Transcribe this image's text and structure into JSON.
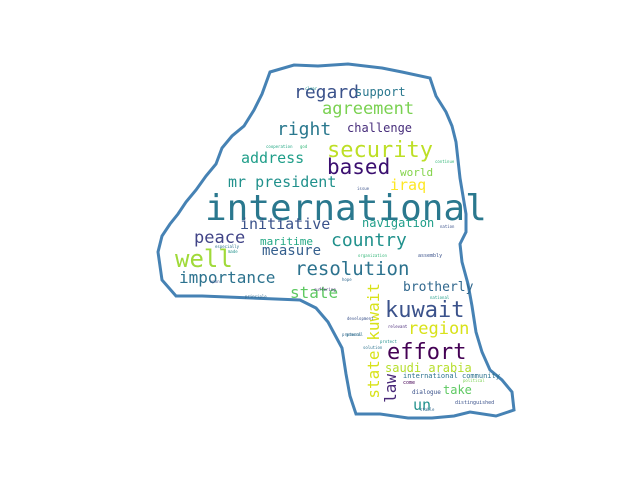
{
  "outline_color": "#4682b4",
  "words": [
    {
      "text": "international",
      "color": "#2a788e"
    },
    {
      "text": "security",
      "color": "#bddf26"
    },
    {
      "text": "based",
      "color": "#3b0f70"
    },
    {
      "text": "well",
      "color": "#a0da39"
    },
    {
      "text": "resolution",
      "color": "#2c728e"
    },
    {
      "text": "kuwait",
      "color": "#3b528b"
    },
    {
      "text": "country",
      "color": "#21918c"
    },
    {
      "text": "effort",
      "color": "#440154"
    },
    {
      "text": "peace",
      "color": "#414487"
    },
    {
      "text": "right",
      "color": "#2a788e"
    },
    {
      "text": "agreement",
      "color": "#7ad151"
    },
    {
      "text": "regard",
      "color": "#3b528b"
    },
    {
      "text": "importance",
      "color": "#2c728e"
    },
    {
      "text": "region",
      "color": "#d8e219"
    },
    {
      "text": "initiative",
      "color": "#3b528b"
    },
    {
      "text": "state",
      "color": "#5ec962"
    },
    {
      "text": "mr president",
      "color": "#21918c"
    },
    {
      "text": "state kuwait",
      "color": "#d8e219"
    },
    {
      "text": "address",
      "color": "#1f9e89"
    },
    {
      "text": "measure",
      "color": "#355f8d"
    },
    {
      "text": "iraq",
      "color": "#fde725"
    },
    {
      "text": "brotherly",
      "color": "#31688e"
    },
    {
      "text": "support",
      "color": "#2a788e"
    },
    {
      "text": "challenge",
      "color": "#472d7b"
    },
    {
      "text": "navigation",
      "color": "#1f9e89"
    },
    {
      "text": "maritime",
      "color": "#22a884"
    },
    {
      "text": "saudi arabia",
      "color": "#b5de2b"
    },
    {
      "text": "law",
      "color": "#482878"
    },
    {
      "text": "un",
      "color": "#21918c"
    },
    {
      "text": "take",
      "color": "#5ec962"
    },
    {
      "text": "world",
      "color": "#84d44b"
    },
    {
      "text": "international community",
      "color": "#2c728e"
    },
    {
      "text": "dialogue",
      "color": "#3b528b"
    },
    {
      "text": "distinguished",
      "color": "#3b528b"
    },
    {
      "text": "come",
      "color": "#440154"
    },
    {
      "text": "especially",
      "color": "#2c728e"
    },
    {
      "text": "assembly",
      "color": "#3b528b"
    },
    {
      "text": "principle",
      "color": "#31688e"
    },
    {
      "text": "cooperation",
      "color": "#22a884"
    },
    {
      "text": "god",
      "color": "#35b779"
    },
    {
      "text": "general",
      "color": "#2c728e"
    },
    {
      "text": "development",
      "color": "#3b528b"
    },
    {
      "text": "hope",
      "color": "#31688e"
    },
    {
      "text": "organization",
      "color": "#35b779"
    },
    {
      "text": "political",
      "color": "#7ad151"
    },
    {
      "text": "solution",
      "color": "#2c728e"
    },
    {
      "text": "relevant",
      "color": "#482878"
    },
    {
      "text": "protect",
      "color": "#21918c"
    },
    {
      "text": "suffering",
      "color": "#472d7b"
    },
    {
      "text": "issue",
      "color": "#3b528b"
    },
    {
      "text": "national",
      "color": "#1f9e89"
    },
    {
      "text": "protocol",
      "color": "#31688e"
    },
    {
      "text": "upon",
      "color": "#3b528b"
    },
    {
      "text": "made",
      "color": "#21918c"
    },
    {
      "text": "clear",
      "color": "#21918c"
    },
    {
      "text": "stable",
      "color": "#31688e"
    },
    {
      "text": "continue",
      "color": "#35b779"
    },
    {
      "text": "nation",
      "color": "#3b528b"
    }
  ]
}
